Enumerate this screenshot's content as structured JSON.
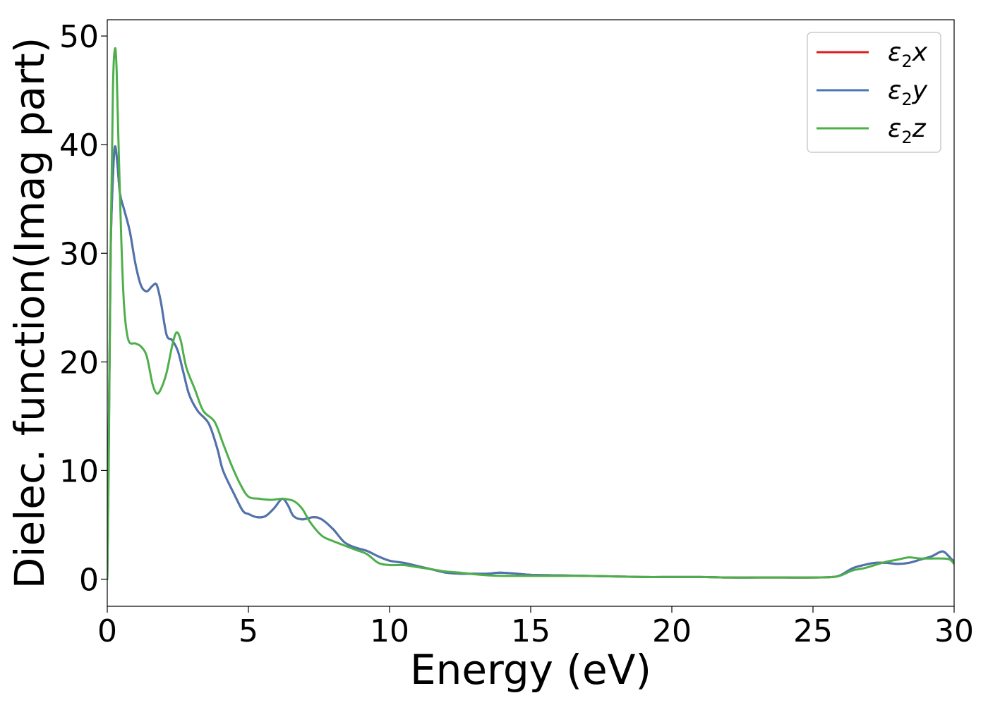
{
  "chart_data": {
    "type": "line",
    "title": "",
    "xlabel": "Energy (eV)",
    "ylabel": "Dielec. function(Imag part)",
    "xlim": [
      0,
      30
    ],
    "ylim": [
      -2.5,
      51.5
    ],
    "xticks": [
      0,
      5,
      10,
      15,
      20,
      25,
      30
    ],
    "xtick_labels": [
      "0",
      "5",
      "10",
      "15",
      "20",
      "25",
      "30"
    ],
    "yticks": [
      0,
      10,
      20,
      30,
      40,
      50
    ],
    "ytick_labels": [
      "0",
      "10",
      "20",
      "30",
      "40",
      "50"
    ],
    "grid": false,
    "legend_position": "top-right",
    "series": [
      {
        "name": "ε2x",
        "legend_base": "ε",
        "legend_sub": "2",
        "legend_var": "x",
        "color": "#e41a1c",
        "points": [
          [
            0,
            0
          ],
          [
            0.05,
            12
          ],
          [
            0.12,
            30
          ],
          [
            0.2,
            37
          ],
          [
            0.27,
            39.8
          ],
          [
            0.35,
            38.5
          ],
          [
            0.45,
            35.5
          ],
          [
            0.6,
            34
          ],
          [
            0.8,
            32
          ],
          [
            1.0,
            29
          ],
          [
            1.2,
            27
          ],
          [
            1.4,
            26.5
          ],
          [
            1.6,
            27
          ],
          [
            1.75,
            27.1
          ],
          [
            1.9,
            25.5
          ],
          [
            2.1,
            22.5
          ],
          [
            2.3,
            22
          ],
          [
            2.5,
            21
          ],
          [
            2.7,
            19
          ],
          [
            2.9,
            17
          ],
          [
            3.2,
            15.5
          ],
          [
            3.6,
            14.3
          ],
          [
            3.9,
            12
          ],
          [
            4.1,
            10
          ],
          [
            4.5,
            7.8
          ],
          [
            4.8,
            6.3
          ],
          [
            5.0,
            6.0
          ],
          [
            5.3,
            5.7
          ],
          [
            5.6,
            5.8
          ],
          [
            5.9,
            6.5
          ],
          [
            6.2,
            7.4
          ],
          [
            6.4,
            6.8
          ],
          [
            6.6,
            5.8
          ],
          [
            6.9,
            5.5
          ],
          [
            7.3,
            5.7
          ],
          [
            7.6,
            5.5
          ],
          [
            8.0,
            4.6
          ],
          [
            8.4,
            3.4
          ],
          [
            8.8,
            2.9
          ],
          [
            9.2,
            2.6
          ],
          [
            9.6,
            2.1
          ],
          [
            10.0,
            1.7
          ],
          [
            10.5,
            1.5
          ],
          [
            11.0,
            1.2
          ],
          [
            11.5,
            0.9
          ],
          [
            12.0,
            0.6
          ],
          [
            12.5,
            0.5
          ],
          [
            13.0,
            0.5
          ],
          [
            13.5,
            0.5
          ],
          [
            13.9,
            0.6
          ],
          [
            14.5,
            0.5
          ],
          [
            15.0,
            0.4
          ],
          [
            16.0,
            0.35
          ],
          [
            17.0,
            0.3
          ],
          [
            18.0,
            0.25
          ],
          [
            19.0,
            0.2
          ],
          [
            20.0,
            0.2
          ],
          [
            21.0,
            0.2
          ],
          [
            22.0,
            0.15
          ],
          [
            23.0,
            0.15
          ],
          [
            24.0,
            0.15
          ],
          [
            25.0,
            0.15
          ],
          [
            25.7,
            0.2
          ],
          [
            26.0,
            0.4
          ],
          [
            26.4,
            1.0
          ],
          [
            26.8,
            1.3
          ],
          [
            27.2,
            1.5
          ],
          [
            27.6,
            1.5
          ],
          [
            28.0,
            1.4
          ],
          [
            28.4,
            1.5
          ],
          [
            28.8,
            1.8
          ],
          [
            29.2,
            2.1
          ],
          [
            29.5,
            2.5
          ],
          [
            29.65,
            2.5
          ],
          [
            29.85,
            2.0
          ],
          [
            30.0,
            1.6
          ]
        ]
      },
      {
        "name": "ε2y",
        "legend_base": "ε",
        "legend_sub": "2",
        "legend_var": "y",
        "color": "#4a75b1",
        "points": [
          [
            0,
            0
          ],
          [
            0.05,
            12
          ],
          [
            0.12,
            30
          ],
          [
            0.2,
            37
          ],
          [
            0.27,
            39.8
          ],
          [
            0.35,
            38.5
          ],
          [
            0.45,
            35.5
          ],
          [
            0.6,
            34
          ],
          [
            0.8,
            32
          ],
          [
            1.0,
            29
          ],
          [
            1.2,
            27
          ],
          [
            1.4,
            26.5
          ],
          [
            1.6,
            27
          ],
          [
            1.75,
            27.1
          ],
          [
            1.9,
            25.5
          ],
          [
            2.1,
            22.5
          ],
          [
            2.3,
            22
          ],
          [
            2.5,
            21
          ],
          [
            2.7,
            19
          ],
          [
            2.9,
            17
          ],
          [
            3.2,
            15.5
          ],
          [
            3.6,
            14.3
          ],
          [
            3.9,
            12
          ],
          [
            4.1,
            10
          ],
          [
            4.5,
            7.8
          ],
          [
            4.8,
            6.3
          ],
          [
            5.0,
            6.0
          ],
          [
            5.3,
            5.7
          ],
          [
            5.6,
            5.8
          ],
          [
            5.9,
            6.5
          ],
          [
            6.2,
            7.4
          ],
          [
            6.4,
            6.8
          ],
          [
            6.6,
            5.8
          ],
          [
            6.9,
            5.5
          ],
          [
            7.3,
            5.7
          ],
          [
            7.6,
            5.5
          ],
          [
            8.0,
            4.6
          ],
          [
            8.4,
            3.4
          ],
          [
            8.8,
            2.9
          ],
          [
            9.2,
            2.6
          ],
          [
            9.6,
            2.1
          ],
          [
            10.0,
            1.7
          ],
          [
            10.5,
            1.5
          ],
          [
            11.0,
            1.2
          ],
          [
            11.5,
            0.9
          ],
          [
            12.0,
            0.6
          ],
          [
            12.5,
            0.5
          ],
          [
            13.0,
            0.5
          ],
          [
            13.5,
            0.5
          ],
          [
            13.9,
            0.6
          ],
          [
            14.5,
            0.5
          ],
          [
            15.0,
            0.4
          ],
          [
            16.0,
            0.35
          ],
          [
            17.0,
            0.3
          ],
          [
            18.0,
            0.25
          ],
          [
            19.0,
            0.2
          ],
          [
            20.0,
            0.2
          ],
          [
            21.0,
            0.2
          ],
          [
            22.0,
            0.15
          ],
          [
            23.0,
            0.15
          ],
          [
            24.0,
            0.15
          ],
          [
            25.0,
            0.15
          ],
          [
            25.7,
            0.2
          ],
          [
            26.0,
            0.4
          ],
          [
            26.4,
            1.0
          ],
          [
            26.8,
            1.3
          ],
          [
            27.2,
            1.5
          ],
          [
            27.6,
            1.5
          ],
          [
            28.0,
            1.4
          ],
          [
            28.4,
            1.5
          ],
          [
            28.8,
            1.8
          ],
          [
            29.2,
            2.1
          ],
          [
            29.5,
            2.5
          ],
          [
            29.65,
            2.5
          ],
          [
            29.85,
            2.0
          ],
          [
            30.0,
            1.6
          ]
        ]
      },
      {
        "name": "ε2z",
        "legend_base": "ε",
        "legend_sub": "2",
        "legend_var": "z",
        "color": "#4daf4a",
        "points": [
          [
            0,
            0
          ],
          [
            0.05,
            10
          ],
          [
            0.12,
            30
          ],
          [
            0.2,
            45
          ],
          [
            0.27,
            48.8
          ],
          [
            0.33,
            47
          ],
          [
            0.4,
            40
          ],
          [
            0.5,
            31
          ],
          [
            0.6,
            25
          ],
          [
            0.75,
            22
          ],
          [
            1.0,
            21.7
          ],
          [
            1.2,
            21.4
          ],
          [
            1.4,
            20.5
          ],
          [
            1.6,
            18
          ],
          [
            1.75,
            17.1
          ],
          [
            1.9,
            17.5
          ],
          [
            2.1,
            19
          ],
          [
            2.3,
            21.5
          ],
          [
            2.45,
            22.7
          ],
          [
            2.6,
            22
          ],
          [
            2.8,
            19.5
          ],
          [
            3.1,
            17.5
          ],
          [
            3.4,
            15.5
          ],
          [
            3.8,
            14.5
          ],
          [
            4.1,
            12.5
          ],
          [
            4.4,
            10.5
          ],
          [
            4.7,
            8.8
          ],
          [
            5.0,
            7.6
          ],
          [
            5.4,
            7.4
          ],
          [
            5.8,
            7.3
          ],
          [
            6.2,
            7.4
          ],
          [
            6.6,
            7.2
          ],
          [
            6.9,
            6.5
          ],
          [
            7.2,
            5.2
          ],
          [
            7.6,
            4.0
          ],
          [
            8.0,
            3.5
          ],
          [
            8.4,
            3.1
          ],
          [
            8.8,
            2.7
          ],
          [
            9.2,
            2.3
          ],
          [
            9.6,
            1.5
          ],
          [
            10.0,
            1.3
          ],
          [
            10.5,
            1.3
          ],
          [
            11.0,
            1.1
          ],
          [
            11.5,
            0.9
          ],
          [
            12.0,
            0.7
          ],
          [
            12.5,
            0.6
          ],
          [
            13.0,
            0.45
          ],
          [
            13.5,
            0.35
          ],
          [
            14.0,
            0.3
          ],
          [
            15.0,
            0.3
          ],
          [
            16.0,
            0.3
          ],
          [
            17.0,
            0.3
          ],
          [
            18.0,
            0.25
          ],
          [
            19.0,
            0.2
          ],
          [
            20.0,
            0.2
          ],
          [
            21.0,
            0.2
          ],
          [
            22.0,
            0.15
          ],
          [
            23.0,
            0.15
          ],
          [
            24.0,
            0.15
          ],
          [
            25.0,
            0.15
          ],
          [
            25.7,
            0.2
          ],
          [
            26.0,
            0.35
          ],
          [
            26.4,
            0.8
          ],
          [
            26.8,
            1.0
          ],
          [
            27.2,
            1.3
          ],
          [
            27.6,
            1.6
          ],
          [
            28.0,
            1.8
          ],
          [
            28.4,
            2.0
          ],
          [
            28.8,
            1.9
          ],
          [
            29.2,
            1.9
          ],
          [
            29.6,
            1.9
          ],
          [
            29.85,
            1.8
          ],
          [
            30.0,
            1.4
          ]
        ]
      }
    ]
  }
}
